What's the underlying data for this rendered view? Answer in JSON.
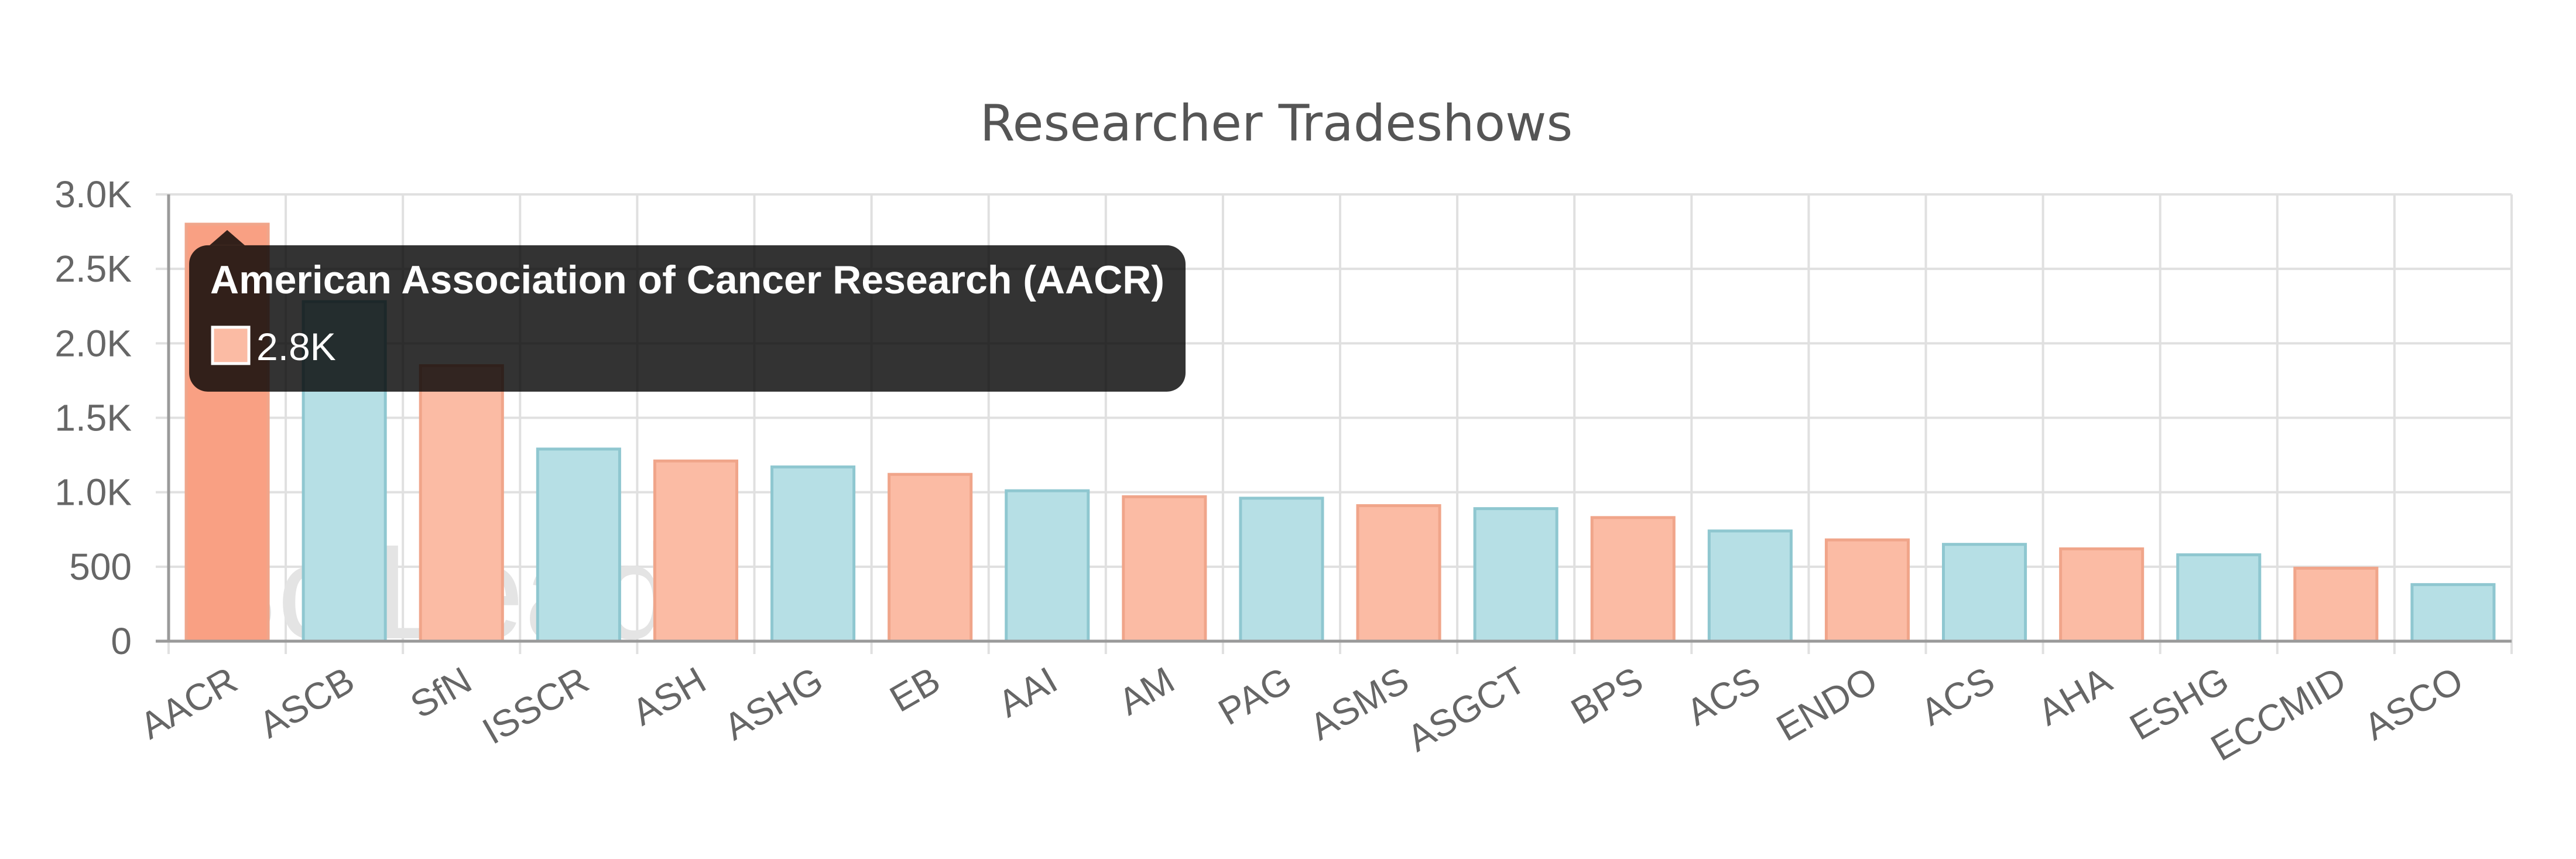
{
  "chart_data": {
    "type": "bar",
    "title": "Researcher Tradeshows",
    "xlabel": "",
    "ylabel": "",
    "ylim": [
      0,
      3000
    ],
    "yticks": [
      "0",
      "500",
      "1.0K",
      "1.5K",
      "2.0K",
      "2.5K",
      "3.0K"
    ],
    "grid": true,
    "categories": [
      "AACR",
      "ASCB",
      "SfN",
      "ISSCR",
      "ASH",
      "ASHG",
      "EB",
      "AAI",
      "AM",
      "PAG",
      "ASMS",
      "ASGCT",
      "BPS",
      "ACS",
      "ENDO",
      "ACS",
      "AHA",
      "ESHG",
      "ECCMID",
      "ASCO"
    ],
    "values": [
      2800,
      2280,
      1850,
      1290,
      1210,
      1170,
      1120,
      1010,
      970,
      960,
      910,
      890,
      830,
      740,
      680,
      650,
      620,
      580,
      490,
      380
    ],
    "colors": {
      "salmon_fill": "#fbbba4",
      "salmon_stroke": "#f0a58a",
      "teal_fill": "#b6dfe5",
      "teal_stroke": "#8fc7d0",
      "highlight_fill": "#f9a083"
    }
  },
  "watermark": "SciLeads",
  "tooltip": {
    "title": "American Association of Cancer Research (AACR)",
    "value": "2.8K",
    "category_index": 0
  }
}
